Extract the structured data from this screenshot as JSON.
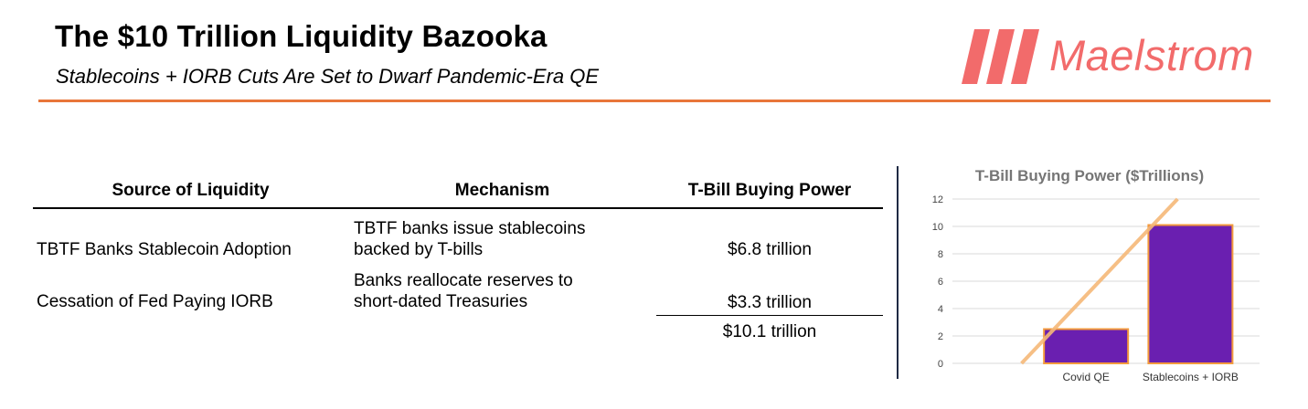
{
  "header": {
    "title": "The $10 Trillion Liquidity Bazooka",
    "subtitle": "Stablecoins + IORB Cuts Are Set to Dwarf Pandemic-Era QE"
  },
  "logo": {
    "text": "Maelstrom",
    "color": "#f26b6b"
  },
  "table": {
    "headers": [
      "Source of Liquidity",
      "Mechanism",
      "T-Bill Buying Power"
    ],
    "rows": [
      {
        "source": "TBTF Banks Stablecoin Adoption",
        "mechanism_line1": "TBTF banks issue stablecoins",
        "mechanism_line2": "backed by T-bills",
        "power": "$6.8 trillion"
      },
      {
        "source": "Cessation of Fed Paying IORB",
        "mechanism_line1": "Banks reallocate reserves to",
        "mechanism_line2": "short-dated Treasuries",
        "power": "$3.3 trillion"
      }
    ],
    "total": "$10.1 trillion"
  },
  "chart_data": {
    "type": "bar",
    "title": "T-Bill Buying Power ($Trillions)",
    "categories": [
      "Covid QE",
      "Stablecoins + IORB"
    ],
    "values": [
      2.5,
      10.1
    ],
    "ylim": [
      0,
      12
    ],
    "yticks": [
      0,
      2,
      4,
      6,
      8,
      10,
      12
    ],
    "grid": true,
    "bar_color": "#6a1fb0",
    "bar_edge_color": "#f39a3c",
    "trendline": {
      "x0": 0,
      "y0": 0,
      "x1": 12,
      "y1": 12,
      "color": "#f5b878"
    },
    "xlabel": "",
    "ylabel": ""
  }
}
